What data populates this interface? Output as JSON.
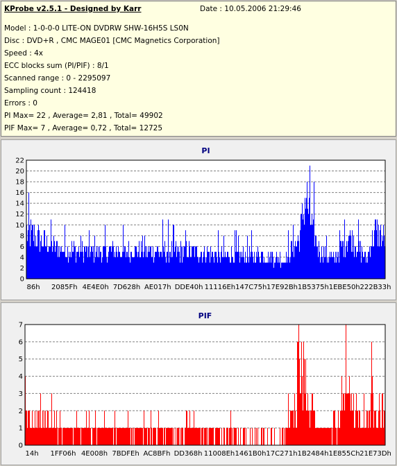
{
  "header": {
    "title": "KProbe v2.5.1 - Designed by Karr",
    "date": "Date : 10.05.2006 21:29:46"
  },
  "info": {
    "model": "Model : 1-0-0-0 LITE-ON DVDRW SHW-16H5S  LS0N",
    "disc": "Disc : DVD+R , CMC MAGE01 [CMC Magnetics Corporation]",
    "speed": "Speed : 4x",
    "ecc": "ECC blocks sum (PI/PIF) : 8/1",
    "range": "Scanned range : 0 - 2295097",
    "sampling": "Sampling count : 124418",
    "errors": "Errors : 0",
    "pi_stats": "PI Max= 22 , Average= 2,81 , Total= 49902",
    "pif_stats": "PIF Max= 7 , Average= 0,72 , Total= 12725"
  },
  "chart_data": [
    {
      "type": "bar",
      "title": "PI",
      "color": "#0000ff",
      "ylim": [
        0,
        22
      ],
      "yticks": [
        0,
        2,
        4,
        6,
        8,
        10,
        12,
        14,
        16,
        18,
        20,
        22
      ],
      "grid": true,
      "x_tick_labels": [
        "86h",
        "2085Fh",
        "4E4E0h",
        "7D628h",
        "AE017h",
        "DDE40h",
        "11116Eh",
        "147C75h",
        "17E92Bh",
        "1B5375h",
        "1EBE50h",
        "222B33h"
      ],
      "profile": [
        {
          "x": 0.0,
          "y": 12
        },
        {
          "x": 0.04,
          "y": 10
        },
        {
          "x": 0.08,
          "y": 8
        },
        {
          "x": 0.15,
          "y": 7
        },
        {
          "x": 0.25,
          "y": 7
        },
        {
          "x": 0.35,
          "y": 7
        },
        {
          "x": 0.45,
          "y": 7
        },
        {
          "x": 0.55,
          "y": 6
        },
        {
          "x": 0.65,
          "y": 6
        },
        {
          "x": 0.72,
          "y": 5
        },
        {
          "x": 0.76,
          "y": 10
        },
        {
          "x": 0.78,
          "y": 21
        },
        {
          "x": 0.8,
          "y": 12
        },
        {
          "x": 0.82,
          "y": 7
        },
        {
          "x": 0.86,
          "y": 5
        },
        {
          "x": 0.9,
          "y": 11
        },
        {
          "x": 0.92,
          "y": 9
        },
        {
          "x": 0.95,
          "y": 5
        },
        {
          "x": 0.97,
          "y": 12
        },
        {
          "x": 0.99,
          "y": 11
        },
        {
          "x": 1.0,
          "y": 10
        }
      ]
    },
    {
      "type": "bar",
      "title": "PIF",
      "color": "#ff0000",
      "ylim": [
        0,
        7
      ],
      "yticks": [
        0,
        1,
        2,
        3,
        4,
        5,
        6,
        7
      ],
      "grid": true,
      "x_tick_labels": [
        "14h",
        "1FF06h",
        "4E008h",
        "7BDFEh",
        "AC8BFh",
        "DD368h",
        "11008Eh",
        "1461B0h",
        "17C271h",
        "1B2484h",
        "1E855Ch",
        "21E73Dh"
      ],
      "profile": [
        {
          "x": 0.0,
          "y": 2.2
        },
        {
          "x": 0.05,
          "y": 1.6
        },
        {
          "x": 0.15,
          "y": 1.2
        },
        {
          "x": 0.3,
          "y": 1.0
        },
        {
          "x": 0.45,
          "y": 0.9
        },
        {
          "x": 0.6,
          "y": 0.7
        },
        {
          "x": 0.72,
          "y": 0.4
        },
        {
          "x": 0.75,
          "y": 3.5
        },
        {
          "x": 0.77,
          "y": 6.5
        },
        {
          "x": 0.79,
          "y": 3.0
        },
        {
          "x": 0.82,
          "y": 1.2
        },
        {
          "x": 0.86,
          "y": 1.0
        },
        {
          "x": 0.89,
          "y": 3.2
        },
        {
          "x": 0.92,
          "y": 2.4
        },
        {
          "x": 0.95,
          "y": 2.0
        },
        {
          "x": 0.97,
          "y": 3.5
        },
        {
          "x": 1.0,
          "y": 3.0
        }
      ]
    }
  ]
}
